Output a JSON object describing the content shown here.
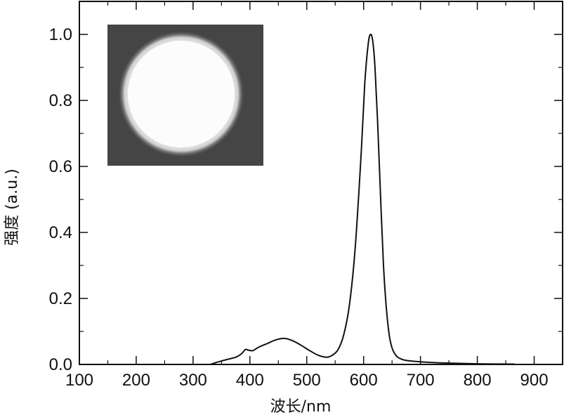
{
  "chart_data": {
    "type": "line",
    "xlabel": "波长/nm",
    "ylabel": "强度 (a.u.)",
    "xlim": [
      100,
      950
    ],
    "ylim": [
      0,
      1.1
    ],
    "x_ticks": [
      100,
      200,
      300,
      400,
      500,
      600,
      700,
      800,
      900
    ],
    "y_ticks": [
      0.0,
      0.2,
      0.4,
      0.6,
      0.8,
      1.0
    ],
    "y_tick_labels": [
      "0.0",
      "0.2",
      "0.4",
      "0.6",
      "0.8",
      "1.0"
    ],
    "grid": false,
    "inset": "photo of a bright white circular emission spot on a dark gray background",
    "series": [
      {
        "x": [
          330,
          345,
          360,
          375,
          385,
          392,
          398,
          405,
          415,
          430,
          445,
          460,
          475,
          490,
          505,
          520,
          535,
          545,
          555,
          565,
          575,
          585,
          595,
          602,
          608,
          612,
          616,
          620,
          625,
          630,
          635,
          640,
          645,
          650,
          655,
          660,
          670,
          685,
          700,
          720,
          750,
          800,
          865
        ],
        "y": [
          0.0,
          0.008,
          0.015,
          0.022,
          0.032,
          0.045,
          0.043,
          0.042,
          0.052,
          0.063,
          0.074,
          0.079,
          0.072,
          0.058,
          0.042,
          0.028,
          0.022,
          0.028,
          0.045,
          0.09,
          0.18,
          0.35,
          0.62,
          0.85,
          0.97,
          1.0,
          0.98,
          0.9,
          0.72,
          0.5,
          0.3,
          0.17,
          0.09,
          0.05,
          0.032,
          0.022,
          0.014,
          0.01,
          0.008,
          0.006,
          0.004,
          0.002,
          0.001
        ]
      }
    ]
  }
}
